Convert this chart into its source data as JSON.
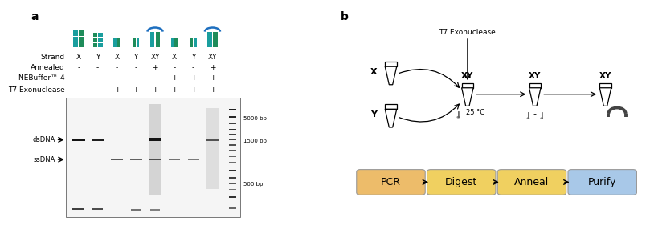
{
  "panel_a_label": "a",
  "panel_b_label": "b",
  "strand_labels": [
    "X",
    "Y",
    "X",
    "Y",
    "XY",
    "X",
    "Y",
    "XY"
  ],
  "annealed": [
    "-",
    "-",
    "-",
    "-",
    "+",
    "-",
    "-",
    "+"
  ],
  "nebuffer": [
    "-",
    "-",
    "-",
    "-",
    "-",
    "+",
    "+",
    "+"
  ],
  "t7exo": [
    "-",
    "-",
    "+",
    "+",
    "+",
    "+",
    "+",
    "+"
  ],
  "row_labels": [
    "Strand",
    "Annealed",
    "NEBuffer™ 4",
    "T7 Exonuclease"
  ],
  "dsdna_label": "dsDNA",
  "ssdna_label": "ssDNA",
  "bp_labels": [
    "5000 bp",
    "1500 bp",
    "500 bp"
  ],
  "workflow_labels": [
    "PCR",
    "Digest",
    "Anneal",
    "Purify"
  ],
  "workflow_colors": [
    "#EDBC6A",
    "#F0D060",
    "#F0D060",
    "#A8C8E8"
  ],
  "t7_label": "T7 Exonuclease",
  "temp_label": "25 °C",
  "teal_color": "#1A9E9E",
  "blue_color": "#1E6FBF",
  "green_color": "#1E8C5A",
  "gel_bg": "#E8E8E8",
  "gel_border": "#888888",
  "gel_light": "#F5F5F5"
}
